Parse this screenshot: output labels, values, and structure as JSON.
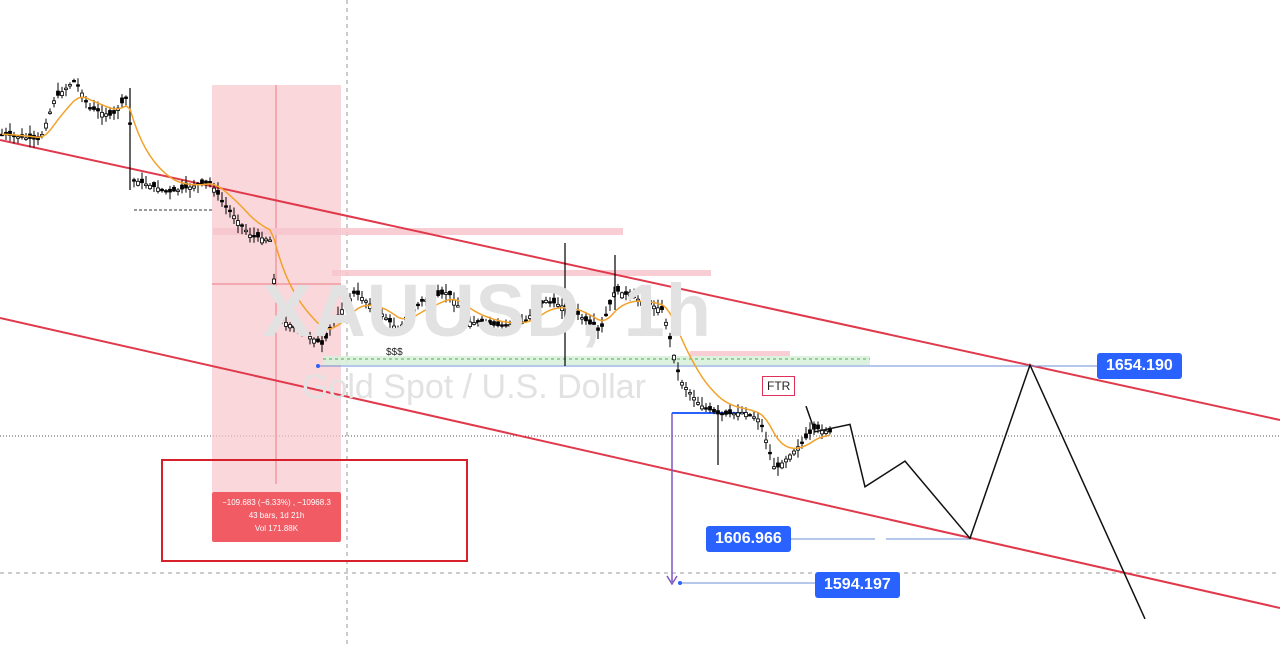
{
  "chart_data": {
    "type": "candlestick",
    "symbol_watermark": "XAUUSD, 1h",
    "name_watermark": "Gold Spot / U.S. Dollar",
    "price_labels": [
      "1654.190",
      "1606.966",
      "1594.197"
    ],
    "price_levels": [
      1654.19,
      1606.966,
      1594.197
    ],
    "annotations": {
      "ftr": "FTR",
      "sss": "$$$",
      "measure_line1": "−109.683 (−6.33%) , −10968.3",
      "measure_line2": "43 bars, 1d 21h",
      "measure_line3": "Vol 171.88K"
    },
    "projection_path": [
      1643,
      1636,
      1638,
      1621,
      1628,
      1606.966,
      1654.19,
      1585
    ],
    "colors": {
      "channel": "#e0394b",
      "ema": "#f2a22a",
      "candle": "#000000",
      "price_tag": "#2962ff",
      "measure": "#f05b64",
      "zone": "#f7c6cc",
      "demand_zone": "#d9efdc"
    },
    "grid": false,
    "legend": "none"
  }
}
